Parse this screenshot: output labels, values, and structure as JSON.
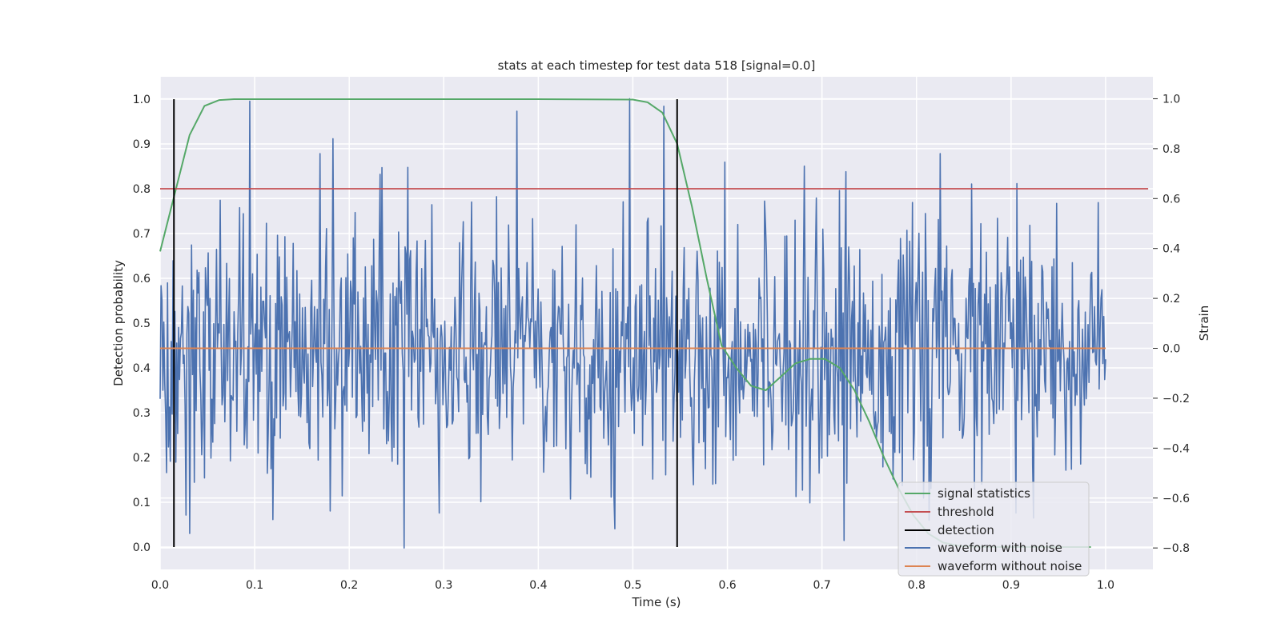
{
  "chart_data": {
    "type": "line",
    "title": "stats at each timestep for test data 518 [signal=0.0]",
    "xlabel": "Time (s)",
    "ylabel": "Detection probability",
    "y2label": "Strain",
    "xlim": [
      0.0,
      1.05
    ],
    "ylim": [
      -0.05,
      1.05
    ],
    "y2lim": [
      -0.886,
      1.088
    ],
    "grid": true,
    "legend_position": "lower-right",
    "xticks": [
      0.0,
      0.1,
      0.2,
      0.3,
      0.4,
      0.5,
      0.6,
      0.7,
      0.8,
      0.9,
      1.0
    ],
    "xtick_labels": [
      "0.0",
      "0.1",
      "0.2",
      "0.3",
      "0.4",
      "0.5",
      "0.6",
      "0.7",
      "0.8",
      "0.9",
      "1.0"
    ],
    "yticks": [
      0.0,
      0.1,
      0.2,
      0.3,
      0.4,
      0.5,
      0.6,
      0.7,
      0.8,
      0.9,
      1.0
    ],
    "ytick_labels": [
      "0.0",
      "0.1",
      "0.2",
      "0.3",
      "0.4",
      "0.5",
      "0.6",
      "0.7",
      "0.8",
      "0.9",
      "1.0"
    ],
    "y2ticks": [
      -0.8,
      -0.6,
      -0.4,
      -0.2,
      0.0,
      0.2,
      0.4,
      0.6,
      0.8,
      1.0
    ],
    "y2tick_labels": [
      "−0.8",
      "−0.6",
      "−0.4",
      "−0.2",
      "0.0",
      "0.2",
      "0.4",
      "0.6",
      "0.8",
      "1.0"
    ],
    "series": [
      {
        "name": "signal statistics",
        "axis": "left",
        "color": "#55a868",
        "x": [
          0.0,
          0.0156,
          0.0312,
          0.0469,
          0.0625,
          0.0781,
          0.1,
          0.2,
          0.3,
          0.4,
          0.5,
          0.5156,
          0.5312,
          0.5469,
          0.5625,
          0.5781,
          0.5938,
          0.6094,
          0.625,
          0.6406,
          0.6562,
          0.6719,
          0.6875,
          0.7031,
          0.7188,
          0.7344,
          0.75,
          0.7656,
          0.7812,
          0.7969,
          0.8125,
          0.8281,
          0.8438,
          0.8594,
          0.875,
          0.8906,
          0.9062,
          0.9219,
          0.9375,
          0.9531,
          0.9688,
          0.9844
        ],
        "values": [
          0.66,
          0.79,
          0.92,
          0.985,
          0.998,
          1.0,
          1.0,
          1.0,
          1.0,
          1.0,
          0.999,
          0.993,
          0.97,
          0.9,
          0.76,
          0.6,
          0.45,
          0.4,
          0.36,
          0.35,
          0.38,
          0.41,
          0.42,
          0.42,
          0.4,
          0.35,
          0.28,
          0.2,
          0.13,
          0.07,
          0.03,
          0.01,
          0.003,
          0.001,
          0.0,
          0.0,
          0.0,
          0.0,
          0.0,
          0.0,
          0.0,
          0.0
        ]
      },
      {
        "name": "threshold",
        "axis": "left",
        "color": "#c44e52",
        "x": [
          0.0,
          1.045
        ],
        "values": [
          0.8,
          0.8
        ]
      },
      {
        "name": "detection",
        "axis": "left",
        "color": "#000000",
        "segments": [
          {
            "x": 0.0146,
            "y": [
              0.0,
              1.0
            ]
          },
          {
            "x": 0.5468,
            "y": [
              0.0,
              1.0
            ]
          }
        ]
      },
      {
        "name": "waveform with noise",
        "axis": "right",
        "color": "#4c72b0",
        "x_start": 0.0,
        "x_end": 1.0,
        "samples": 1024,
        "values_summary": "Gaussian-like noise about 0.0 strain, typical spread about ±0.4, extremes about 1.00 (near t=0.497) and −0.80 (near t=0.258)",
        "peaks": [
          {
            "x": 0.0947,
            "y": 0.99
          },
          {
            "x": 0.1825,
            "y": 0.84
          },
          {
            "x": 0.3777,
            "y": 0.95
          },
          {
            "x": 0.4962,
            "y": 1.0
          },
          {
            "x": 0.5327,
            "y": 0.97
          },
          {
            "x": 0.681,
            "y": 0.73
          },
          {
            "x": 0.9066,
            "y": 0.66
          },
          {
            "x": 0.2576,
            "y": -0.8
          },
          {
            "x": 0.2948,
            "y": -0.66
          },
          {
            "x": 0.7229,
            "y": -0.77
          },
          {
            "x": 0.9055,
            "y": -0.66
          },
          {
            "x": 0.9241,
            "y": -0.68
          }
        ]
      },
      {
        "name": "waveform without noise",
        "axis": "right",
        "color": "#dd8452",
        "x": [
          0.0,
          1.0
        ],
        "values": [
          0.0,
          0.0
        ]
      }
    ]
  }
}
